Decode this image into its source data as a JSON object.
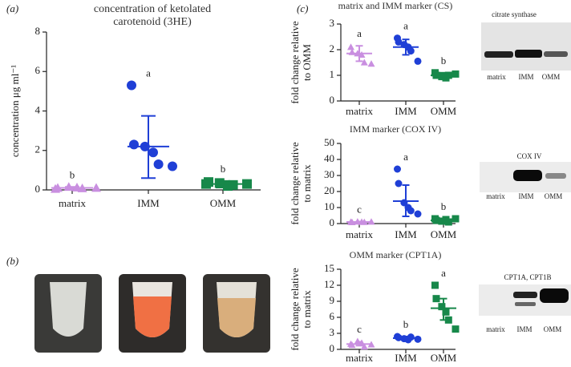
{
  "panels": {
    "a": "(a)",
    "b": "(b)",
    "c": "(c)"
  },
  "blots": [
    {
      "title": "citrate synthase",
      "lanes": [
        "matrix",
        "IMM",
        "OMM"
      ]
    },
    {
      "title": "COX IV",
      "lanes": [
        "matrix",
        "IMM",
        "OMM"
      ]
    },
    {
      "title": "CPT1A, CPT1B",
      "lanes": [
        "matrix",
        "IMM",
        "OMM"
      ]
    }
  ],
  "chart_data": [
    {
      "type": "dot",
      "title": [
        "concentration of ketolated",
        "carotenoid (3HE)"
      ],
      "y_label": [
        "concentration μg ml⁻¹"
      ],
      "categories": [
        "matrix",
        "IMM",
        "OMM"
      ],
      "colors": [
        "#c98fe0",
        "#1f3fd6",
        "#17884a"
      ],
      "markers": [
        "triangle",
        "circle",
        "square"
      ],
      "points": [
        [
          0.05,
          0.1,
          0.15,
          0.12,
          0.08,
          0.1
        ],
        [
          5.3,
          2.3,
          2.2,
          1.9,
          1.3,
          1.2
        ],
        [
          0.3,
          0.4,
          0.35,
          0.2,
          0.25,
          0.3
        ]
      ],
      "means": [
        0.1,
        2.2,
        0.3
      ],
      "error_low": [
        0.05,
        0.6,
        0.12
      ],
      "error_high": [
        0.15,
        3.75,
        0.45
      ],
      "letters": [
        "b",
        "a",
        "b"
      ],
      "ylim": [
        0,
        8
      ],
      "yticks": [
        0,
        2,
        4,
        6,
        8
      ]
    },
    {
      "type": "dot",
      "title": [
        "matrix and IMM marker (CS)"
      ],
      "y_label": [
        "fold change relative",
        "to OMM"
      ],
      "categories": [
        "matrix",
        "IMM",
        "OMM"
      ],
      "colors": [
        "#c98fe0",
        "#1f3fd6",
        "#17884a"
      ],
      "markers": [
        "triangle",
        "circle",
        "square"
      ],
      "points": [
        [
          2.1,
          1.9,
          1.85,
          1.8,
          1.5,
          1.45
        ],
        [
          2.45,
          2.3,
          2.2,
          2.1,
          1.95,
          1.55
        ],
        [
          1.1,
          1.0,
          0.95,
          0.9,
          1.0,
          1.05
        ]
      ],
      "means": [
        1.85,
        2.1,
        1.0
      ],
      "error_low": [
        1.55,
        1.8,
        0.9
      ],
      "error_high": [
        2.15,
        2.4,
        1.1
      ],
      "letters": [
        "a",
        "a",
        "b"
      ],
      "ylim": [
        0,
        3
      ],
      "yticks": [
        0,
        1,
        2,
        3
      ]
    },
    {
      "type": "dot",
      "title": [
        "IMM marker (COX IV)"
      ],
      "y_label": [
        "fold change relative",
        "to matrix"
      ],
      "categories": [
        "matrix",
        "IMM",
        "OMM"
      ],
      "colors": [
        "#c98fe0",
        "#1f3fd6",
        "#17884a"
      ],
      "markers": [
        "triangle",
        "circle",
        "square"
      ],
      "points": [
        [
          1,
          0.8,
          1.2,
          1,
          0.9,
          1.1
        ],
        [
          34,
          25,
          13,
          10,
          8,
          6
        ],
        [
          3,
          2,
          1.5,
          2.5,
          1,
          3
        ]
      ],
      "means": [
        1,
        14,
        2
      ],
      "error_low": [
        0.8,
        4.5,
        1
      ],
      "error_high": [
        1.2,
        24,
        3
      ],
      "letters": [
        "c",
        "a",
        "b"
      ],
      "ylim": [
        0,
        50
      ],
      "yticks": [
        0,
        10,
        20,
        30,
        40,
        50
      ]
    },
    {
      "type": "dot",
      "title": [
        "OMM marker (CPT1A)"
      ],
      "y_label": [
        "fold change relative",
        "to matrix"
      ],
      "categories": [
        "matrix",
        "IMM",
        "OMM"
      ],
      "colors": [
        "#c98fe0",
        "#1f3fd6",
        "#17884a"
      ],
      "markers": [
        "triangle",
        "circle",
        "square"
      ],
      "points": [
        [
          1,
          0.8,
          1.5,
          1.2,
          0.5,
          0.9
        ],
        [
          2.4,
          2.2,
          2.0,
          1.8,
          2.3,
          1.9
        ],
        [
          12,
          9.5,
          8,
          7,
          5.5,
          3.8
        ]
      ],
      "means": [
        1,
        2.1,
        7.7
      ],
      "error_low": [
        0.7,
        1.7,
        5.5
      ],
      "error_high": [
        1.4,
        2.4,
        9.5
      ],
      "letters": [
        "c",
        "b",
        "a"
      ],
      "ylim": [
        0,
        15
      ],
      "yticks": [
        0,
        3,
        6,
        9,
        12,
        15
      ]
    }
  ]
}
